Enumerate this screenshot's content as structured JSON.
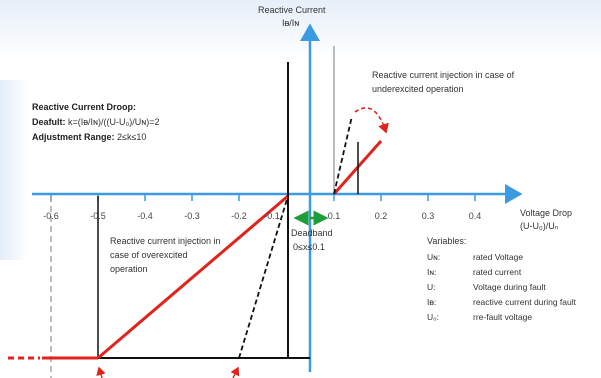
{
  "y_axis": {
    "title": "Reactive Current",
    "unit_label": "Iᴃ/Iɴ"
  },
  "x_axis": {
    "title": "Voltage Drop",
    "unit_label": "(U-U₀)/Uₙ",
    "ticks": [
      "-0.6",
      "-0.5",
      "-0.4",
      "-0.3",
      "-0.2",
      "-0.1",
      "0.1",
      "0.2",
      "0.3",
      "0.4"
    ]
  },
  "droop": {
    "heading": "Reactive Current Droop:",
    "default_label": "Deafult:",
    "default_formula": "k=(Iᴃ/Iɴ)/((U-U₀)/Uɴ)=2",
    "range_label": "Adjustment Range:",
    "range_value": "2≤k≤10"
  },
  "under_excited": {
    "line1": "Reactive current injection in case of",
    "line2": "underexcited operation"
  },
  "over_excited": {
    "line1": "Reactive current injection in",
    "line2": "case of overexcited",
    "line3": "operation"
  },
  "deadband": {
    "label": "Deadband",
    "range": "0≤x≤0.1"
  },
  "variables": {
    "title": "Variables:",
    "items": [
      {
        "symbol": "Uɴ:",
        "desc": "rated Voltage"
      },
      {
        "symbol": "Iɴ:",
        "desc": "rated current"
      },
      {
        "symbol": "U:",
        "desc": "Voltage during fault"
      },
      {
        "symbol": "Iᴃ:",
        "desc": "reactive current during fault"
      },
      {
        "symbol": "U₀:",
        "desc": "rre-fault voltage"
      }
    ]
  },
  "colors": {
    "axis": "#3a9be0",
    "characteristic": "#e0231c",
    "deadband_arrow": "#1e9e3a",
    "guide": "#111111"
  }
}
